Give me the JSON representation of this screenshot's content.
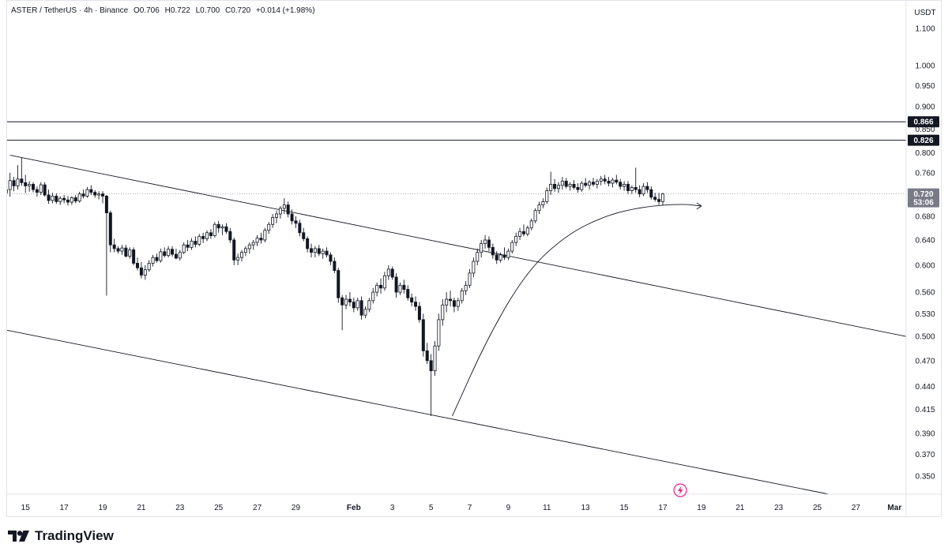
{
  "legend": {
    "symbol": "ASTER / TetherUS · 4h · Binance",
    "open": "O0.706",
    "high": "H0.722",
    "low": "L0.700",
    "close": "C0.720",
    "change": "+0.014 (+1.98%)"
  },
  "currency": "USDT",
  "footer": {
    "brand": "TradingView"
  },
  "colors": {
    "candle": "#131722",
    "line": "#131722",
    "grid_dot": "#9598a1",
    "tag_dark": "#131722",
    "tag_price": "#787b86"
  },
  "chart_data": {
    "type": "candlestick",
    "timeframe": "4h",
    "symbol": "ASTER / TetherUS",
    "exchange": "Binance",
    "x_tick_labels": [
      {
        "label": "15",
        "day": 15
      },
      {
        "label": "17",
        "day": 17
      },
      {
        "label": "19",
        "day": 19
      },
      {
        "label": "21",
        "day": 21
      },
      {
        "label": "23",
        "day": 23
      },
      {
        "label": "25",
        "day": 25
      },
      {
        "label": "27",
        "day": 27
      },
      {
        "label": "29",
        "day": 29
      },
      {
        "label": "Feb",
        "day": 32
      },
      {
        "label": "3",
        "day": 34
      },
      {
        "label": "5",
        "day": 36
      },
      {
        "label": "7",
        "day": 38
      },
      {
        "label": "9",
        "day": 40
      },
      {
        "label": "11",
        "day": 42
      },
      {
        "label": "13",
        "day": 44
      },
      {
        "label": "15",
        "day": 46
      },
      {
        "label": "17",
        "day": 48
      },
      {
        "label": "19",
        "day": 50
      },
      {
        "label": "21",
        "day": 52
      },
      {
        "label": "23",
        "day": 54
      },
      {
        "label": "25",
        "day": 56
      },
      {
        "label": "27",
        "day": 58
      },
      {
        "label": "Mar",
        "day": 60
      }
    ],
    "x_range_days": [
      14.05,
      60.6
    ],
    "y_tick_labels": [
      "1.100",
      "1.000",
      "0.950",
      "0.900",
      "0.850",
      "0.800",
      "0.760",
      "0.720",
      "0.680",
      "0.640",
      "0.600",
      "0.560",
      "0.530",
      "0.500",
      "0.470",
      "0.440",
      "0.415",
      "0.390",
      "0.370",
      "0.350"
    ],
    "y_scale": "log",
    "y_range": [
      0.334,
      1.18
    ],
    "price_levels": [
      {
        "value": 0.866,
        "label": "0.866"
      },
      {
        "value": 0.826,
        "label": "0.826"
      }
    ],
    "current_price": {
      "value": 0.72,
      "label": "0.720",
      "countdown": "53:06"
    },
    "trendlines": [
      {
        "name": "channel-upper",
        "from": {
          "day": 14.2,
          "price": 0.795
        },
        "to": {
          "day": 60.6,
          "price": 0.5
        }
      },
      {
        "name": "channel-lower",
        "from": {
          "day": 14.05,
          "price": 0.508
        },
        "to": {
          "day": 56.6,
          "price": 0.334
        }
      }
    ],
    "curve_arrow": {
      "points": [
        {
          "day": 37.1,
          "price": 0.408
        },
        {
          "day": 39.0,
          "price": 0.502
        },
        {
          "day": 41.0,
          "price": 0.592
        },
        {
          "day": 43.0,
          "price": 0.648
        },
        {
          "day": 45.0,
          "price": 0.681
        },
        {
          "day": 47.0,
          "price": 0.697
        },
        {
          "day": 49.0,
          "price": 0.702
        },
        {
          "day": 50.0,
          "price": 0.698
        }
      ]
    },
    "candles_approx": [
      [
        14.0,
        0.722,
        0.735,
        0.712,
        0.728
      ],
      [
        14.2,
        0.728,
        0.76,
        0.715,
        0.745
      ],
      [
        14.4,
        0.745,
        0.752,
        0.725,
        0.735
      ],
      [
        14.6,
        0.735,
        0.775,
        0.728,
        0.748
      ],
      [
        14.8,
        0.748,
        0.79,
        0.735,
        0.741
      ],
      [
        15.0,
        0.741,
        0.756,
        0.722,
        0.735
      ],
      [
        15.2,
        0.735,
        0.744,
        0.724,
        0.738
      ],
      [
        15.4,
        0.738,
        0.742,
        0.723,
        0.728
      ],
      [
        15.6,
        0.728,
        0.734,
        0.715,
        0.723
      ],
      [
        15.8,
        0.723,
        0.742,
        0.718,
        0.737
      ],
      [
        16.0,
        0.737,
        0.742,
        0.715,
        0.718
      ],
      [
        16.2,
        0.718,
        0.728,
        0.702,
        0.708
      ],
      [
        16.4,
        0.708,
        0.722,
        0.703,
        0.716
      ],
      [
        16.6,
        0.716,
        0.721,
        0.702,
        0.706
      ],
      [
        16.8,
        0.706,
        0.716,
        0.7,
        0.712
      ],
      [
        17.0,
        0.712,
        0.718,
        0.703,
        0.709
      ],
      [
        17.2,
        0.709,
        0.716,
        0.699,
        0.705
      ],
      [
        17.4,
        0.705,
        0.716,
        0.7,
        0.713
      ],
      [
        17.6,
        0.713,
        0.718,
        0.703,
        0.707
      ],
      [
        17.8,
        0.707,
        0.724,
        0.704,
        0.72
      ],
      [
        18.0,
        0.72,
        0.728,
        0.712,
        0.716
      ],
      [
        18.2,
        0.716,
        0.733,
        0.713,
        0.728
      ],
      [
        18.4,
        0.728,
        0.736,
        0.718,
        0.723
      ],
      [
        18.6,
        0.723,
        0.727,
        0.713,
        0.718
      ],
      [
        18.8,
        0.718,
        0.725,
        0.71,
        0.72
      ],
      [
        19.0,
        0.72,
        0.725,
        0.703,
        0.716
      ],
      [
        19.2,
        0.716,
        0.718,
        0.555,
        0.686
      ],
      [
        19.4,
        0.686,
        0.69,
        0.62,
        0.632
      ],
      [
        19.6,
        0.632,
        0.642,
        0.62,
        0.626
      ],
      [
        19.8,
        0.626,
        0.63,
        0.618,
        0.622
      ],
      [
        20.0,
        0.622,
        0.632,
        0.616,
        0.627
      ],
      [
        20.2,
        0.627,
        0.632,
        0.612,
        0.614
      ],
      [
        20.4,
        0.614,
        0.628,
        0.61,
        0.624
      ],
      [
        20.6,
        0.624,
        0.628,
        0.6,
        0.603
      ],
      [
        20.8,
        0.603,
        0.612,
        0.592,
        0.596
      ],
      [
        21.0,
        0.596,
        0.605,
        0.58,
        0.585
      ],
      [
        21.2,
        0.585,
        0.6,
        0.578,
        0.593
      ],
      [
        21.4,
        0.593,
        0.608,
        0.59,
        0.603
      ],
      [
        21.6,
        0.603,
        0.616,
        0.598,
        0.612
      ],
      [
        21.8,
        0.612,
        0.618,
        0.604,
        0.607
      ],
      [
        22.0,
        0.607,
        0.626,
        0.604,
        0.621
      ],
      [
        22.2,
        0.621,
        0.628,
        0.612,
        0.615
      ],
      [
        22.4,
        0.615,
        0.63,
        0.612,
        0.625
      ],
      [
        22.6,
        0.625,
        0.63,
        0.613,
        0.617
      ],
      [
        22.8,
        0.617,
        0.626,
        0.609,
        0.611
      ],
      [
        23.0,
        0.611,
        0.624,
        0.607,
        0.62
      ],
      [
        23.2,
        0.62,
        0.636,
        0.617,
        0.632
      ],
      [
        23.4,
        0.632,
        0.64,
        0.622,
        0.628
      ],
      [
        23.6,
        0.628,
        0.643,
        0.624,
        0.638
      ],
      [
        23.8,
        0.638,
        0.646,
        0.628,
        0.633
      ],
      [
        24.0,
        0.633,
        0.65,
        0.63,
        0.646
      ],
      [
        24.2,
        0.646,
        0.652,
        0.635,
        0.642
      ],
      [
        24.4,
        0.642,
        0.656,
        0.638,
        0.652
      ],
      [
        24.6,
        0.652,
        0.658,
        0.642,
        0.647
      ],
      [
        24.8,
        0.647,
        0.67,
        0.644,
        0.666
      ],
      [
        25.0,
        0.666,
        0.672,
        0.652,
        0.66
      ],
      [
        25.2,
        0.66,
        0.666,
        0.648,
        0.662
      ],
      [
        25.4,
        0.662,
        0.668,
        0.65,
        0.654
      ],
      [
        25.6,
        0.654,
        0.66,
        0.635,
        0.64
      ],
      [
        25.8,
        0.64,
        0.644,
        0.6,
        0.608
      ],
      [
        26.0,
        0.608,
        0.618,
        0.6,
        0.612
      ],
      [
        26.2,
        0.612,
        0.624,
        0.606,
        0.62
      ],
      [
        26.4,
        0.62,
        0.63,
        0.614,
        0.626
      ],
      [
        26.6,
        0.626,
        0.636,
        0.618,
        0.632
      ],
      [
        26.8,
        0.632,
        0.64,
        0.624,
        0.636
      ],
      [
        27.0,
        0.636,
        0.648,
        0.63,
        0.643
      ],
      [
        27.2,
        0.643,
        0.652,
        0.634,
        0.64
      ],
      [
        27.4,
        0.64,
        0.66,
        0.636,
        0.656
      ],
      [
        27.6,
        0.656,
        0.67,
        0.65,
        0.666
      ],
      [
        27.8,
        0.666,
        0.684,
        0.66,
        0.678
      ],
      [
        28.0,
        0.678,
        0.69,
        0.668,
        0.684
      ],
      [
        28.2,
        0.684,
        0.698,
        0.676,
        0.694
      ],
      [
        28.4,
        0.694,
        0.712,
        0.684,
        0.7
      ],
      [
        28.6,
        0.7,
        0.706,
        0.678,
        0.684
      ],
      [
        28.8,
        0.684,
        0.692,
        0.666,
        0.672
      ],
      [
        29.0,
        0.672,
        0.68,
        0.66,
        0.668
      ],
      [
        29.2,
        0.668,
        0.674,
        0.646,
        0.652
      ],
      [
        29.4,
        0.652,
        0.66,
        0.638,
        0.642
      ],
      [
        29.6,
        0.642,
        0.646,
        0.62,
        0.626
      ],
      [
        29.8,
        0.626,
        0.634,
        0.612,
        0.62
      ],
      [
        30.0,
        0.62,
        0.63,
        0.612,
        0.626
      ],
      [
        30.2,
        0.626,
        0.632,
        0.614,
        0.618
      ],
      [
        30.4,
        0.618,
        0.626,
        0.61,
        0.622
      ],
      [
        30.6,
        0.622,
        0.628,
        0.612,
        0.616
      ],
      [
        30.8,
        0.616,
        0.62,
        0.6,
        0.606
      ],
      [
        31.0,
        0.606,
        0.612,
        0.588,
        0.592
      ],
      [
        31.2,
        0.592,
        0.596,
        0.545,
        0.552
      ],
      [
        31.4,
        0.552,
        0.556,
        0.508,
        0.542
      ],
      [
        31.6,
        0.542,
        0.556,
        0.536,
        0.55
      ],
      [
        31.8,
        0.55,
        0.56,
        0.54,
        0.546
      ],
      [
        32.0,
        0.546,
        0.552,
        0.532,
        0.538
      ],
      [
        32.2,
        0.538,
        0.552,
        0.534,
        0.548
      ],
      [
        32.4,
        0.548,
        0.554,
        0.522,
        0.528
      ],
      [
        32.6,
        0.528,
        0.54,
        0.524,
        0.536
      ],
      [
        32.8,
        0.536,
        0.552,
        0.532,
        0.548
      ],
      [
        33.0,
        0.548,
        0.566,
        0.544,
        0.56
      ],
      [
        33.2,
        0.56,
        0.574,
        0.554,
        0.57
      ],
      [
        33.4,
        0.57,
        0.58,
        0.558,
        0.566
      ],
      [
        33.6,
        0.566,
        0.59,
        0.562,
        0.584
      ],
      [
        33.8,
        0.584,
        0.6,
        0.578,
        0.594
      ],
      [
        34.0,
        0.594,
        0.598,
        0.578,
        0.582
      ],
      [
        34.2,
        0.582,
        0.588,
        0.552,
        0.56
      ],
      [
        34.4,
        0.56,
        0.574,
        0.556,
        0.57
      ],
      [
        34.6,
        0.57,
        0.578,
        0.558,
        0.564
      ],
      [
        34.8,
        0.564,
        0.57,
        0.548,
        0.552
      ],
      [
        35.0,
        0.552,
        0.558,
        0.54,
        0.546
      ],
      [
        35.2,
        0.546,
        0.554,
        0.534,
        0.54
      ],
      [
        35.4,
        0.54,
        0.546,
        0.518,
        0.522
      ],
      [
        35.6,
        0.522,
        0.53,
        0.475,
        0.482
      ],
      [
        35.8,
        0.482,
        0.492,
        0.466,
        0.47
      ],
      [
        36.0,
        0.47,
        0.478,
        0.408,
        0.458
      ],
      [
        36.2,
        0.458,
        0.494,
        0.452,
        0.488
      ],
      [
        36.4,
        0.488,
        0.53,
        0.482,
        0.522
      ],
      [
        36.6,
        0.522,
        0.55,
        0.514,
        0.542
      ],
      [
        36.8,
        0.542,
        0.56,
        0.532,
        0.55
      ],
      [
        37.0,
        0.55,
        0.562,
        0.54,
        0.548
      ],
      [
        37.2,
        0.548,
        0.552,
        0.532,
        0.54
      ],
      [
        37.4,
        0.54,
        0.552,
        0.534,
        0.548
      ],
      [
        37.6,
        0.548,
        0.566,
        0.544,
        0.562
      ],
      [
        37.8,
        0.562,
        0.576,
        0.556,
        0.57
      ],
      [
        38.0,
        0.57,
        0.594,
        0.566,
        0.588
      ],
      [
        38.2,
        0.588,
        0.612,
        0.582,
        0.606
      ],
      [
        38.4,
        0.606,
        0.626,
        0.6,
        0.62
      ],
      [
        38.6,
        0.62,
        0.64,
        0.612,
        0.634
      ],
      [
        38.8,
        0.634,
        0.648,
        0.626,
        0.64
      ],
      [
        39.0,
        0.64,
        0.646,
        0.622,
        0.628
      ],
      [
        39.2,
        0.628,
        0.634,
        0.61,
        0.616
      ],
      [
        39.4,
        0.616,
        0.622,
        0.602,
        0.608
      ],
      [
        39.6,
        0.608,
        0.62,
        0.604,
        0.616
      ],
      [
        39.8,
        0.616,
        0.628,
        0.608,
        0.612
      ],
      [
        40.0,
        0.612,
        0.626,
        0.608,
        0.622
      ],
      [
        40.2,
        0.622,
        0.64,
        0.618,
        0.636
      ],
      [
        40.4,
        0.636,
        0.652,
        0.63,
        0.646
      ],
      [
        40.6,
        0.646,
        0.66,
        0.64,
        0.654
      ],
      [
        40.8,
        0.654,
        0.666,
        0.646,
        0.65
      ],
      [
        41.0,
        0.65,
        0.664,
        0.646,
        0.66
      ],
      [
        41.2,
        0.66,
        0.676,
        0.656,
        0.672
      ],
      [
        41.4,
        0.672,
        0.694,
        0.668,
        0.69
      ],
      [
        41.6,
        0.69,
        0.706,
        0.684,
        0.7
      ],
      [
        41.8,
        0.7,
        0.712,
        0.694,
        0.706
      ],
      [
        42.0,
        0.706,
        0.732,
        0.702,
        0.726
      ],
      [
        42.2,
        0.726,
        0.762,
        0.718,
        0.738
      ],
      [
        42.4,
        0.738,
        0.748,
        0.724,
        0.73
      ],
      [
        42.6,
        0.73,
        0.742,
        0.722,
        0.736
      ],
      [
        42.8,
        0.736,
        0.752,
        0.728,
        0.744
      ],
      [
        43.0,
        0.744,
        0.75,
        0.73,
        0.734
      ],
      [
        43.2,
        0.734,
        0.742,
        0.726,
        0.738
      ],
      [
        43.4,
        0.738,
        0.746,
        0.728,
        0.732
      ],
      [
        43.6,
        0.732,
        0.74,
        0.722,
        0.728
      ],
      [
        43.8,
        0.728,
        0.744,
        0.724,
        0.74
      ],
      [
        44.0,
        0.74,
        0.75,
        0.732,
        0.736
      ],
      [
        44.2,
        0.736,
        0.746,
        0.728,
        0.742
      ],
      [
        44.4,
        0.742,
        0.75,
        0.734,
        0.738
      ],
      [
        44.6,
        0.738,
        0.748,
        0.73,
        0.744
      ],
      [
        44.8,
        0.744,
        0.754,
        0.736,
        0.748
      ],
      [
        45.0,
        0.748,
        0.756,
        0.738,
        0.744
      ],
      [
        45.2,
        0.744,
        0.752,
        0.734,
        0.74
      ],
      [
        45.4,
        0.74,
        0.75,
        0.732,
        0.746
      ],
      [
        45.6,
        0.746,
        0.756,
        0.738,
        0.742
      ],
      [
        45.8,
        0.742,
        0.748,
        0.728,
        0.734
      ],
      [
        46.0,
        0.734,
        0.744,
        0.726,
        0.738
      ],
      [
        46.2,
        0.738,
        0.744,
        0.72,
        0.726
      ],
      [
        46.4,
        0.726,
        0.736,
        0.72,
        0.732
      ],
      [
        46.6,
        0.732,
        0.77,
        0.722,
        0.728
      ],
      [
        46.8,
        0.728,
        0.736,
        0.714,
        0.72
      ],
      [
        47.0,
        0.72,
        0.74,
        0.716,
        0.734
      ],
      [
        47.2,
        0.734,
        0.742,
        0.722,
        0.728
      ],
      [
        47.4,
        0.728,
        0.734,
        0.71,
        0.714
      ],
      [
        47.6,
        0.714,
        0.722,
        0.706,
        0.71
      ],
      [
        47.8,
        0.71,
        0.722,
        0.7,
        0.706
      ],
      [
        48.0,
        0.706,
        0.722,
        0.7,
        0.72
      ]
    ]
  }
}
